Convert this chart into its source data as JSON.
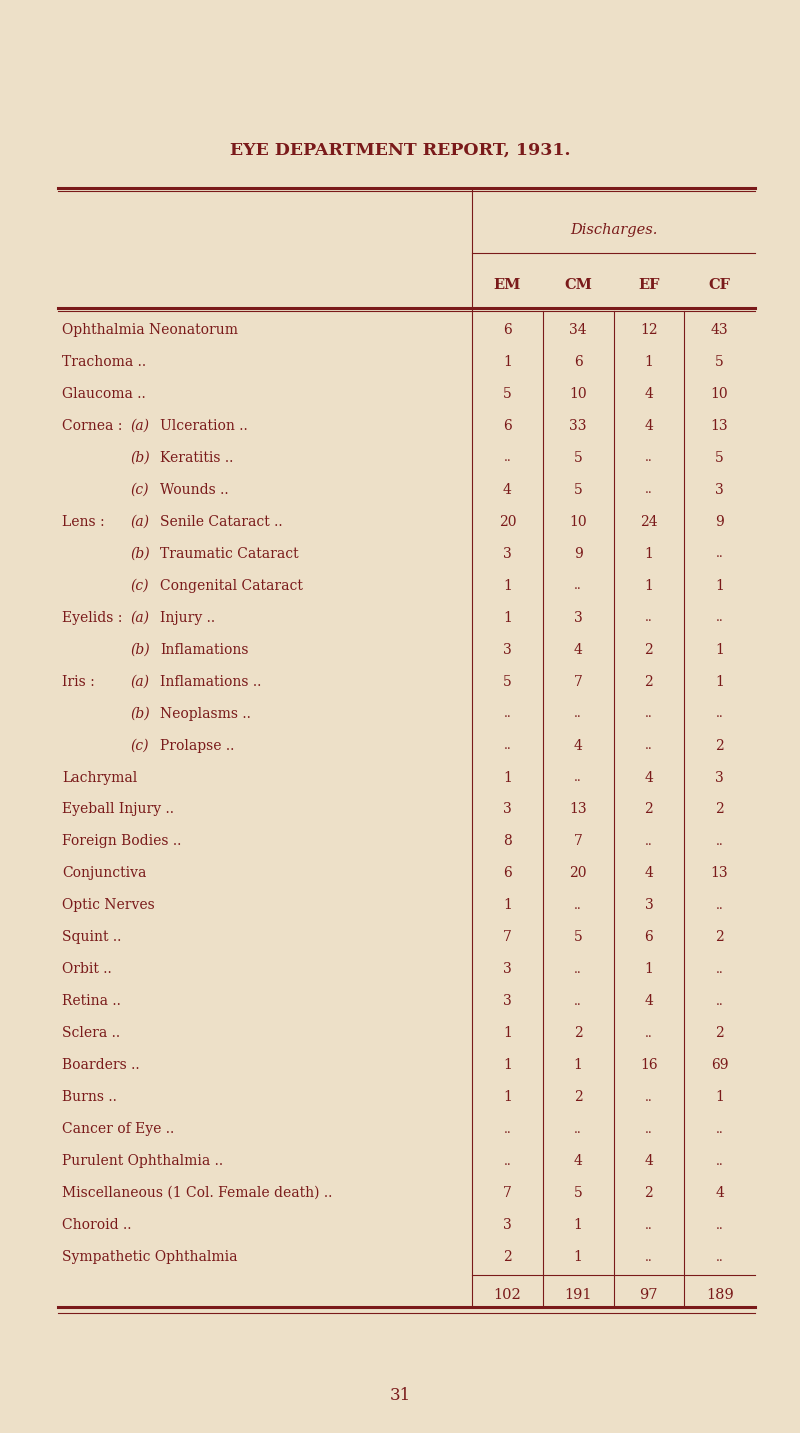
{
  "title": "EYE DEPARTMENT REPORT, 1931.",
  "subtitle": "Discharges.",
  "col_headers": [
    "EM",
    "CM",
    "EF",
    "CF"
  ],
  "rows": [
    {
      "label": "Ophthalmia Neonatorum",
      "prefix": "",
      "sublabel": "",
      "em": "6",
      "cm": "34",
      "ef": "12",
      "cf": "43"
    },
    {
      "label": "Trachoma ..",
      "prefix": "",
      "sublabel": "",
      "em": "1",
      "cm": "6",
      "ef": "1",
      "cf": "5"
    },
    {
      "label": "Glaucoma ..",
      "prefix": "",
      "sublabel": "",
      "em": "5",
      "cm": "10",
      "ef": "4",
      "cf": "10"
    },
    {
      "label": "Cornea :",
      "prefix": "(a)",
      "sublabel": "Ulceration ..",
      "em": "6",
      "cm": "33",
      "ef": "4",
      "cf": "13"
    },
    {
      "label": "",
      "prefix": "(b)",
      "sublabel": "Keratitis ..",
      "em": "..",
      "cm": "5",
      "ef": "..",
      "cf": "5"
    },
    {
      "label": "",
      "prefix": "(c)",
      "sublabel": "Wounds ..",
      "em": "4",
      "cm": "5",
      "ef": "..",
      "cf": "3"
    },
    {
      "label": "Lens :",
      "prefix": "(a)",
      "sublabel": "Senile Cataract ..",
      "em": "20",
      "cm": "10",
      "ef": "24",
      "cf": "9"
    },
    {
      "label": "",
      "prefix": "(b)",
      "sublabel": "Traumatic Cataract",
      "em": "3",
      "cm": "9",
      "ef": "1",
      "cf": ".."
    },
    {
      "label": "",
      "prefix": "(c)",
      "sublabel": "Congenital Cataract",
      "em": "1",
      "cm": "..",
      "ef": "1",
      "cf": "1"
    },
    {
      "label": "Eyelids :",
      "prefix": "(a)",
      "sublabel": "Injury ..",
      "em": "1",
      "cm": "3",
      "ef": "..",
      "cf": ".."
    },
    {
      "label": "",
      "prefix": "(b)",
      "sublabel": "Inflamations",
      "em": "3",
      "cm": "4",
      "ef": "2",
      "cf": "1"
    },
    {
      "label": "Iris :",
      "prefix": "(a)",
      "sublabel": "Inflamations ..",
      "em": "5",
      "cm": "7",
      "ef": "2",
      "cf": "1"
    },
    {
      "label": "",
      "prefix": "(b)",
      "sublabel": "Neoplasms ..",
      "em": "..",
      "cm": "..",
      "ef": "..",
      "cf": ".."
    },
    {
      "label": "",
      "prefix": "(c)",
      "sublabel": "Prolapse ..",
      "em": "..",
      "cm": "4",
      "ef": "..",
      "cf": "2"
    },
    {
      "label": "Lachrymal",
      "prefix": "",
      "sublabel": "",
      "em": "1",
      "cm": "..",
      "ef": "4",
      "cf": "3"
    },
    {
      "label": "Eyeball Injury ..",
      "prefix": "",
      "sublabel": "",
      "em": "3",
      "cm": "13",
      "ef": "2",
      "cf": "2"
    },
    {
      "label": "Foreign Bodies ..",
      "prefix": "",
      "sublabel": "",
      "em": "8",
      "cm": "7",
      "ef": "..",
      "cf": ".."
    },
    {
      "label": "Conjunctiva",
      "prefix": "",
      "sublabel": "",
      "em": "6",
      "cm": "20",
      "ef": "4",
      "cf": "13"
    },
    {
      "label": "Optic Nerves",
      "prefix": "",
      "sublabel": "",
      "em": "1",
      "cm": "..",
      "ef": "3",
      "cf": ".."
    },
    {
      "label": "Squint ..",
      "prefix": "",
      "sublabel": "",
      "em": "7",
      "cm": "5",
      "ef": "6",
      "cf": "2"
    },
    {
      "label": "Orbit ..",
      "prefix": "",
      "sublabel": "",
      "em": "3",
      "cm": "..",
      "ef": "1",
      "cf": ".."
    },
    {
      "label": "Retina ..",
      "prefix": "",
      "sublabel": "",
      "em": "3",
      "cm": "..",
      "ef": "4",
      "cf": ".."
    },
    {
      "label": "Sclera ..",
      "prefix": "",
      "sublabel": "",
      "em": "1",
      "cm": "2",
      "ef": "..",
      "cf": "2"
    },
    {
      "label": "Boarders ..",
      "prefix": "",
      "sublabel": "",
      "em": "1",
      "cm": "1",
      "ef": "16",
      "cf": "69"
    },
    {
      "label": "Burns ..",
      "prefix": "",
      "sublabel": "",
      "em": "1",
      "cm": "2",
      "ef": "..",
      "cf": "1"
    },
    {
      "label": "Cancer of Eye ..",
      "prefix": "",
      "sublabel": "",
      "em": "..",
      "cm": "..",
      "ef": "..",
      "cf": ".."
    },
    {
      "label": "Purulent Ophthalmia ..",
      "prefix": "",
      "sublabel": "",
      "em": "..",
      "cm": "4",
      "ef": "4",
      "cf": ".."
    },
    {
      "label": "Miscellaneous (1 Col. Female death) ..",
      "prefix": "",
      "sublabel": "",
      "em": "7",
      "cm": "5",
      "ef": "2",
      "cf": "4"
    },
    {
      "label": "Choroid ..",
      "prefix": "",
      "sublabel": "",
      "em": "3",
      "cm": "1",
      "ef": "..",
      "cf": ".."
    },
    {
      "label": "Sympathetic Ophthalmia",
      "prefix": "",
      "sublabel": "",
      "em": "2",
      "cm": "1",
      "ef": "..",
      "cf": ".."
    }
  ],
  "totals": {
    "em": "102",
    "cm": "191",
    "ef": "97",
    "cf": "189"
  },
  "bg_color": "#ede0c8",
  "text_color": "#7a1a1a",
  "line_color": "#7a1a1a",
  "page_number": "31",
  "font_size_title": 12.5,
  "font_size_body": 10.0,
  "font_size_header": 10.5
}
